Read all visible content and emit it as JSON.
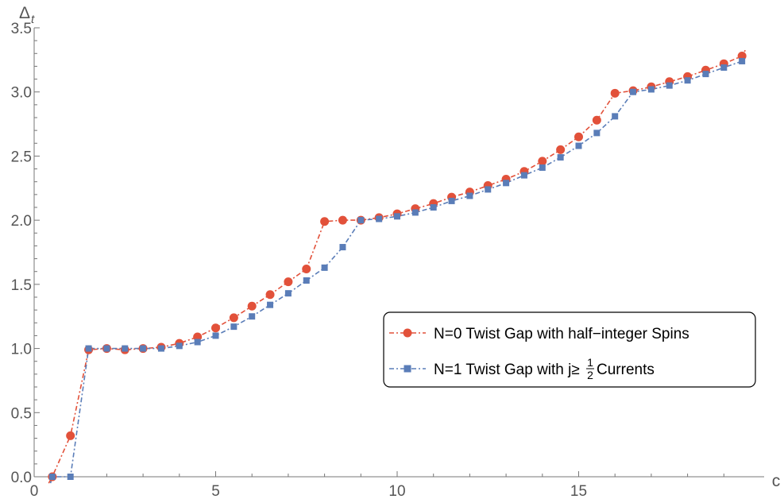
{
  "chart_data": {
    "type": "line",
    "xlabel": "c",
    "ylabel": "Δ",
    "ylabel_sub": "t",
    "xlim": [
      0,
      19.6
    ],
    "ylim": [
      0,
      3.5
    ],
    "x_ticks": [
      0,
      5,
      10,
      15
    ],
    "x_tick_labels": [
      "0",
      "5",
      "10",
      "15"
    ],
    "y_ticks": [
      0,
      0.5,
      1.0,
      1.5,
      2.0,
      2.5,
      3.0,
      3.5
    ],
    "y_tick_labels": [
      "0.0",
      "0.5",
      "1.0",
      "1.5",
      "2.0",
      "2.5",
      "3.0",
      "3.5"
    ],
    "grid": false,
    "legend_position": "right",
    "series": [
      {
        "name": "N=0 Twist Gap with half−integer Spins",
        "color": "#E2513A",
        "marker": "circle",
        "x": [
          0.5,
          1,
          1.5,
          2,
          2.5,
          3,
          3.5,
          4,
          4.5,
          5,
          5.5,
          6,
          6.5,
          7,
          7.5,
          8,
          8.5,
          9,
          9.5,
          10,
          10.5,
          11,
          11.5,
          12,
          12.5,
          13,
          13.5,
          14,
          14.5,
          15,
          15.5,
          16,
          16.5,
          17,
          17.5,
          18,
          18.5,
          19,
          19.5
        ],
        "y": [
          0,
          0.32,
          0.99,
          1.0,
          0.99,
          1.0,
          1.01,
          1.04,
          1.09,
          1.16,
          1.24,
          1.33,
          1.42,
          1.52,
          1.62,
          1.99,
          2.0,
          2.0,
          2.02,
          2.05,
          2.09,
          2.13,
          2.18,
          2.22,
          2.27,
          2.32,
          2.38,
          2.46,
          2.55,
          2.65,
          2.78,
          2.99,
          3.01,
          3.04,
          3.08,
          3.12,
          3.17,
          3.22,
          3.28
        ],
        "line_ends": {
          "start": [
            0.4,
            -0.05
          ],
          "end": [
            19.6,
            3.33
          ]
        }
      },
      {
        "name": "N=1 Twist Gap with j≥1/2 Currents",
        "color": "#5A7DB8",
        "marker": "square",
        "x": [
          0.5,
          1,
          1.5,
          2,
          2.5,
          3,
          3.5,
          4,
          4.5,
          5,
          5.5,
          6,
          6.5,
          7,
          7.5,
          8,
          8.5,
          9,
          9.5,
          10,
          10.5,
          11,
          11.5,
          12,
          12.5,
          13,
          13.5,
          14,
          14.5,
          15,
          15.5,
          16,
          16.5,
          17,
          17.5,
          18,
          18.5,
          19,
          19.5
        ],
        "y": [
          0,
          0,
          1.0,
          1.0,
          1.0,
          1.0,
          1.0,
          1.02,
          1.05,
          1.1,
          1.17,
          1.25,
          1.34,
          1.43,
          1.53,
          1.63,
          1.79,
          2.0,
          2.01,
          2.03,
          2.06,
          2.1,
          2.15,
          2.19,
          2.24,
          2.29,
          2.35,
          2.41,
          2.49,
          2.58,
          2.68,
          2.81,
          3.0,
          3.02,
          3.05,
          3.09,
          3.14,
          3.19,
          3.24
        ],
        "line_ends": {
          "start": [
            0.45,
            -0.05
          ],
          "end": [
            19.6,
            3.28
          ]
        }
      }
    ],
    "legend": {
      "entry1_label": "N=0 Twist Gap with half−integer Spins",
      "entry2_prefix": "N=1 Twist Gap with j≥",
      "entry2_frac_num": "1",
      "entry2_frac_den": "2",
      "entry2_suffix": " Currents"
    }
  }
}
